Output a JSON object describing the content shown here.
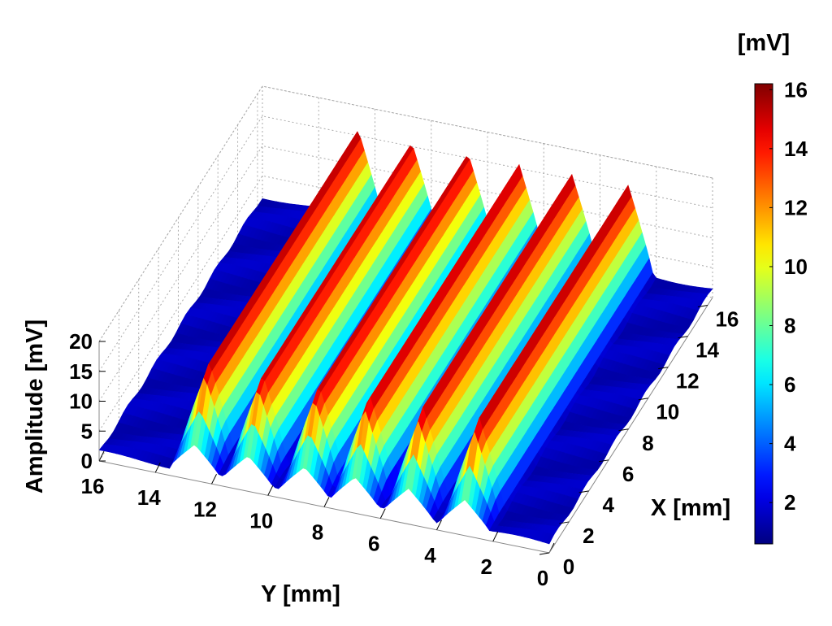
{
  "chart_data": {
    "type": "surface",
    "title": "",
    "xlabel": "X [mm]",
    "ylabel": "Y [mm]",
    "zlabel": "Amplitude [mV]",
    "xlim": [
      0,
      16.5
    ],
    "ylim": [
      0,
      16
    ],
    "zlim": [
      0,
      20
    ],
    "x_ticks": [
      0,
      2,
      4,
      6,
      8,
      10,
      12,
      14,
      16
    ],
    "y_ticks": [
      0,
      2,
      4,
      6,
      8,
      10,
      12,
      14,
      16
    ],
    "z_ticks": [
      0,
      5,
      10,
      15,
      20
    ],
    "grid": true,
    "colormap": "jet",
    "colorbar": {
      "label": "[mV]",
      "ticks": [
        2,
        4,
        6,
        8,
        10,
        12,
        14,
        16
      ],
      "range": [
        0.6,
        16.2
      ],
      "colors": [
        "#00008f",
        "#0000ff",
        "#00ffff",
        "#80ff80",
        "#ffff00",
        "#ff8000",
        "#ff0000",
        "#800000"
      ]
    },
    "baseline_mV": 1.5,
    "ridges": [
      {
        "y_center": 12.6,
        "peak_mV": 16.0
      },
      {
        "y_center": 10.7,
        "peak_mV": 15.8
      },
      {
        "y_center": 8.7,
        "peak_mV": 15.9
      },
      {
        "y_center": 6.9,
        "peak_mV": 16.0
      },
      {
        "y_center": 5.0,
        "peak_mV": 15.8
      },
      {
        "y_center": 3.0,
        "peak_mV": 15.9
      }
    ],
    "ridge_half_width_mm": 0.9
  }
}
